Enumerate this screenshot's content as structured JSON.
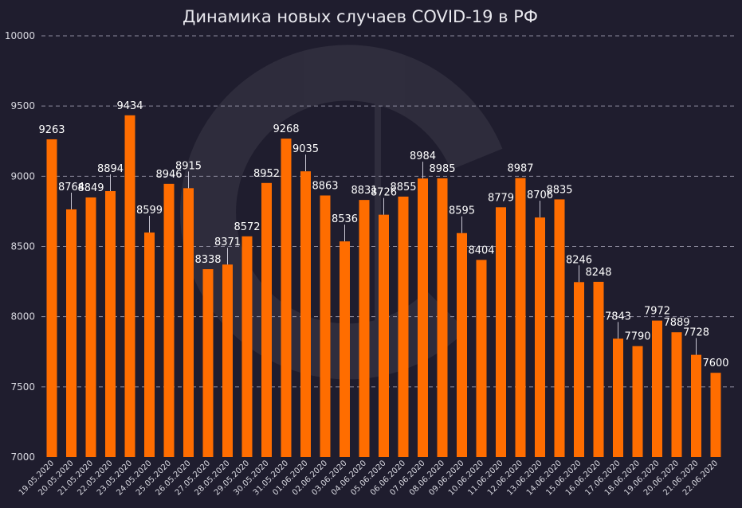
{
  "chart_data": {
    "type": "bar",
    "title": "Динамика новых случаев COVID-19 в РФ",
    "xlabel": "",
    "ylabel": "",
    "ylim": [
      7000,
      10000
    ],
    "yticks": [
      7000,
      7500,
      8000,
      8500,
      9000,
      9500,
      10000
    ],
    "grid": true,
    "bar_color": "#ff6d00",
    "categories": [
      "19.05.2020",
      "20.05.2020",
      "21.05.2020",
      "22.05.2020",
      "23.05.2020",
      "24.05.2020",
      "25.05.2020",
      "26.05.2020",
      "27.05.2020",
      "28.05.2020",
      "29.05.2020",
      "30.05.2020",
      "31.05.2020",
      "01.06.2020",
      "02.06.2020",
      "03.06.2020",
      "04.06.2020",
      "05.06.2020",
      "06.06.2020",
      "07.06.2020",
      "08.06.2020",
      "09.06.2020",
      "10.06.2020",
      "11.06.2020",
      "12.06.2020",
      "13.06.2020",
      "14.06.2020",
      "15.06.2020",
      "16.06.2020",
      "17.06.2020",
      "18.06.2020",
      "19.06.2020",
      "20.06.2020",
      "21.06.2020",
      "22.06.2020"
    ],
    "values": [
      9263,
      8764,
      8849,
      8894,
      9434,
      8599,
      8946,
      8915,
      8338,
      8371,
      8572,
      8952,
      9268,
      9035,
      8863,
      8536,
      8831,
      8726,
      8855,
      8984,
      8985,
      8595,
      8404,
      8779,
      8987,
      8706,
      8835,
      8246,
      8248,
      7843,
      7790,
      7972,
      7889,
      7728,
      7600
    ]
  }
}
